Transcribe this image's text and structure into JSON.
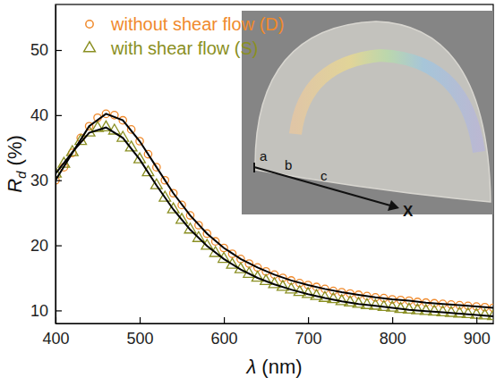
{
  "chart_data": {
    "type": "scatter",
    "xlabel": "λ (nm)",
    "ylabel": "Rd (%)",
    "xlim": [
      400,
      920
    ],
    "ylim": [
      8,
      57
    ],
    "xticks": [
      400,
      500,
      600,
      700,
      800,
      900
    ],
    "yticks": [
      10,
      20,
      30,
      40,
      50
    ],
    "grid": false,
    "legend": "upper left",
    "annotations": [
      "a",
      "b",
      "c",
      "X"
    ],
    "series": [
      {
        "name": "without shear flow (D)",
        "color": "#f08a2c",
        "type": "scatter",
        "marker": "circle",
        "x": [
          400,
          410,
          420,
          430,
          440,
          450,
          460,
          470,
          480,
          490,
          500,
          510,
          520,
          530,
          540,
          550,
          560,
          570,
          580,
          590,
          600,
          610,
          620,
          630,
          640,
          650,
          660,
          670,
          680,
          690,
          700,
          710,
          720,
          730,
          740,
          750,
          760,
          770,
          780,
          790,
          800,
          810,
          820,
          830,
          840,
          850,
          860,
          870,
          880,
          890,
          900,
          910,
          920
        ],
        "values": [
          30,
          32,
          34.2,
          36.5,
          38.3,
          39.6,
          40.2,
          40.0,
          39.2,
          37.8,
          36.0,
          34.0,
          32.0,
          30.0,
          28.0,
          26.2,
          24.6,
          23.1,
          21.8,
          20.6,
          19.6,
          18.7,
          17.9,
          17.2,
          16.6,
          16.0,
          15.5,
          15.0,
          14.6,
          14.2,
          13.9,
          13.6,
          13.3,
          13.0,
          12.8,
          12.6,
          12.4,
          12.2,
          12.0,
          11.9,
          11.7,
          11.6,
          11.5,
          11.3,
          11.2,
          11.1,
          11.0,
          10.9,
          10.8,
          10.7,
          10.6,
          10.5,
          10.4
        ]
      },
      {
        "name": "with shear flow (S)",
        "color": "#8a8f22",
        "type": "scatter",
        "marker": "triangle",
        "x": [
          400,
          410,
          420,
          430,
          440,
          450,
          460,
          470,
          480,
          490,
          500,
          510,
          520,
          530,
          540,
          550,
          560,
          570,
          580,
          590,
          600,
          610,
          620,
          630,
          640,
          650,
          660,
          670,
          680,
          690,
          700,
          710,
          720,
          730,
          740,
          750,
          760,
          770,
          780,
          790,
          800,
          810,
          820,
          830,
          840,
          850,
          860,
          870,
          880,
          890,
          900,
          910,
          920
        ],
        "values": [
          31,
          32.5,
          34.3,
          36.0,
          37.3,
          38.0,
          38.1,
          37.6,
          36.5,
          35.0,
          33.2,
          31.2,
          29.2,
          27.3,
          25.5,
          23.9,
          22.4,
          21.1,
          19.9,
          18.8,
          17.9,
          17.0,
          16.3,
          15.6,
          15.0,
          14.5,
          14.0,
          13.6,
          13.2,
          12.8,
          12.5,
          12.2,
          11.9,
          11.7,
          11.4,
          11.2,
          11.0,
          10.8,
          10.7,
          10.5,
          10.4,
          10.2,
          10.1,
          10.0,
          9.9,
          9.8,
          9.7,
          9.6,
          9.5,
          9.4,
          9.3,
          9.2,
          9.1
        ]
      },
      {
        "color": "#000000",
        "type": "line",
        "line_style": "solid",
        "x": [
          400,
          420,
          440,
          460,
          480,
          500,
          520,
          540,
          560,
          580,
          600,
          620,
          640,
          660,
          680,
          700,
          720,
          740,
          760,
          780,
          800,
          820,
          840,
          860,
          880,
          900,
          920
        ],
        "values": [
          30,
          34.2,
          38.3,
          40.2,
          39.2,
          36.0,
          32.0,
          28.0,
          24.6,
          21.8,
          19.6,
          17.9,
          16.6,
          15.5,
          14.6,
          13.9,
          13.3,
          12.8,
          12.4,
          12.0,
          11.7,
          11.5,
          11.2,
          11.0,
          10.8,
          10.6,
          10.4
        ]
      },
      {
        "color": "#000000",
        "type": "line",
        "line_style": "solid",
        "x": [
          400,
          420,
          440,
          460,
          480,
          500,
          520,
          540,
          560,
          580,
          600,
          620,
          640,
          660,
          680,
          700,
          720,
          740,
          760,
          780,
          800,
          820,
          840,
          860,
          880,
          900,
          920
        ],
        "values": [
          31,
          34.3,
          37.3,
          38.1,
          36.5,
          33.2,
          29.2,
          25.5,
          22.4,
          19.9,
          17.9,
          16.3,
          15.0,
          14.0,
          13.2,
          12.5,
          11.9,
          11.4,
          11.0,
          10.7,
          10.4,
          10.1,
          9.9,
          9.7,
          9.5,
          9.3,
          9.1
        ]
      }
    ]
  }
}
